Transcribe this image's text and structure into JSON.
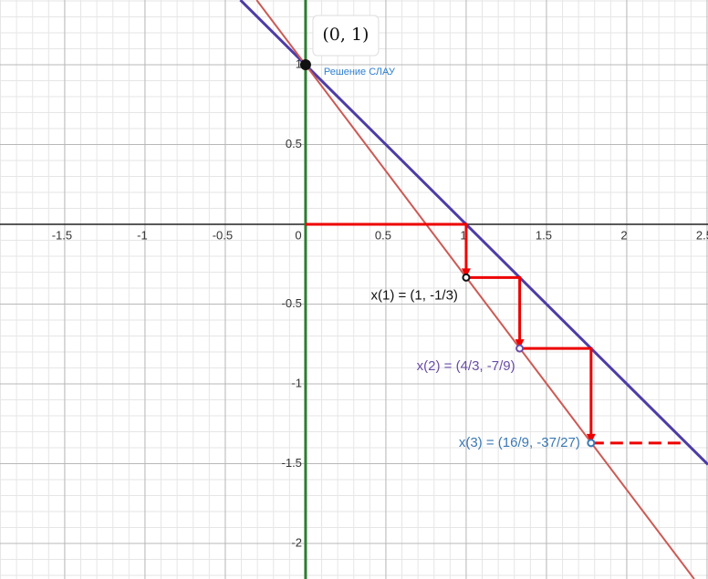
{
  "chart_data": {
    "type": "line",
    "xlim": [
      -1.903,
      2.506
    ],
    "ylim": [
      -2.223,
      1.406
    ],
    "xticks": [
      -1.5,
      -1,
      -0.5,
      0,
      0.5,
      1,
      1.5,
      2,
      2.5
    ],
    "yticks": [
      -2,
      -1.5,
      -1,
      -0.5,
      0.5,
      1
    ],
    "minor_grid_step": 0.1,
    "grid": true,
    "series": [
      {
        "color": "#4e3ca6",
        "width": 3,
        "x": [
          -0.406,
          2.506
        ],
        "values": [
          1.406,
          -1.506
        ]
      },
      {
        "color": "#cc5a55",
        "width": 2,
        "x": [
          -0.305,
          2.42
        ],
        "values": [
          1.406,
          -2.223
        ]
      },
      {
        "color": "#2e7d32",
        "width": 3,
        "x": [
          0,
          0
        ],
        "values": [
          1.406,
          -2.223
        ]
      },
      {
        "color": "#ee0000",
        "width": 3,
        "arrows": true,
        "x": [
          0,
          1,
          1,
          1.3333,
          1.3333,
          1.7778,
          1.7778
        ],
        "values": [
          0,
          0,
          -0.3333,
          -0.3333,
          -0.7778,
          -0.7778,
          -1.3704
        ]
      },
      {
        "color": "#ee0000",
        "width": 3,
        "dashed": true,
        "x": [
          1.7778,
          2.37
        ],
        "values": [
          -1.3704,
          -1.3704
        ]
      }
    ],
    "points": [
      {
        "x": 0,
        "y": 1,
        "label": "(0, 1)",
        "sublabel": "Решение СЛАУ",
        "color": "#111111",
        "filled": true
      },
      {
        "x": 1,
        "y": -0.3333,
        "label": "x(1) = (1, -1/3)",
        "color": "#111111",
        "filled": false
      },
      {
        "x": 1.3333,
        "y": -0.7778,
        "label": "x(2) = (4/3, -7/9)",
        "color": "#6a4ca8",
        "filled": false
      },
      {
        "x": 1.7778,
        "y": -1.3704,
        "label": "x(3) = (16/9, -37/27)",
        "color": "#3a78b5",
        "filled": false
      }
    ]
  }
}
